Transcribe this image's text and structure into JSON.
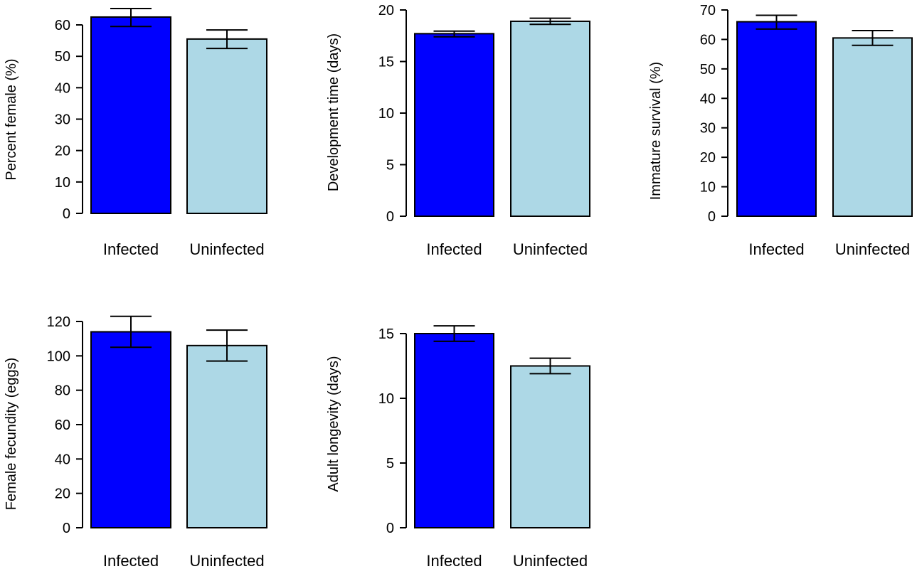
{
  "colors": {
    "infected": "#0000ff",
    "uninfected": "#add8e6",
    "outline": "#000000"
  },
  "chart_data": [
    {
      "type": "bar",
      "categories": [
        "Infected",
        "Uninfected"
      ],
      "values": [
        62.5,
        55.5
      ],
      "error_low": [
        59.5,
        52.5
      ],
      "error_high": [
        65.2,
        58.4
      ],
      "ylabel": "Percent female (%)",
      "ylim": [
        0,
        65
      ],
      "yticks": [
        0,
        10,
        20,
        30,
        40,
        50,
        60
      ]
    },
    {
      "type": "bar",
      "categories": [
        "Infected",
        "Uninfected"
      ],
      "values": [
        17.7,
        18.9
      ],
      "error_low": [
        17.4,
        18.6
      ],
      "error_high": [
        17.95,
        19.2
      ],
      "ylabel": "Development time (days)",
      "ylim": [
        0,
        20
      ],
      "yticks": [
        0,
        5,
        10,
        15,
        20
      ]
    },
    {
      "type": "bar",
      "categories": [
        "Infected",
        "Uninfected"
      ],
      "values": [
        66,
        60.5
      ],
      "error_low": [
        63.5,
        58
      ],
      "error_high": [
        68.2,
        63
      ],
      "ylabel": "Immature survival (%)",
      "ylim": [
        0,
        70
      ],
      "yticks": [
        0,
        10,
        20,
        30,
        40,
        50,
        60,
        70
      ]
    },
    {
      "type": "bar",
      "categories": [
        "Infected",
        "Uninfected"
      ],
      "values": [
        114,
        106
      ],
      "error_low": [
        105,
        97
      ],
      "error_high": [
        123,
        115
      ],
      "ylabel": "Female fecundity (eggs)",
      "ylim": [
        0,
        120
      ],
      "yticks": [
        0,
        20,
        40,
        60,
        80,
        100,
        120
      ]
    },
    {
      "type": "bar",
      "categories": [
        "Infected",
        "Uninfected"
      ],
      "values": [
        15,
        12.5
      ],
      "error_low": [
        14.4,
        11.9
      ],
      "error_high": [
        15.6,
        13.1
      ],
      "ylabel": "Adult longevity (days)",
      "ylim": [
        0,
        15
      ],
      "yticks": [
        0,
        5,
        10,
        15
      ]
    }
  ]
}
